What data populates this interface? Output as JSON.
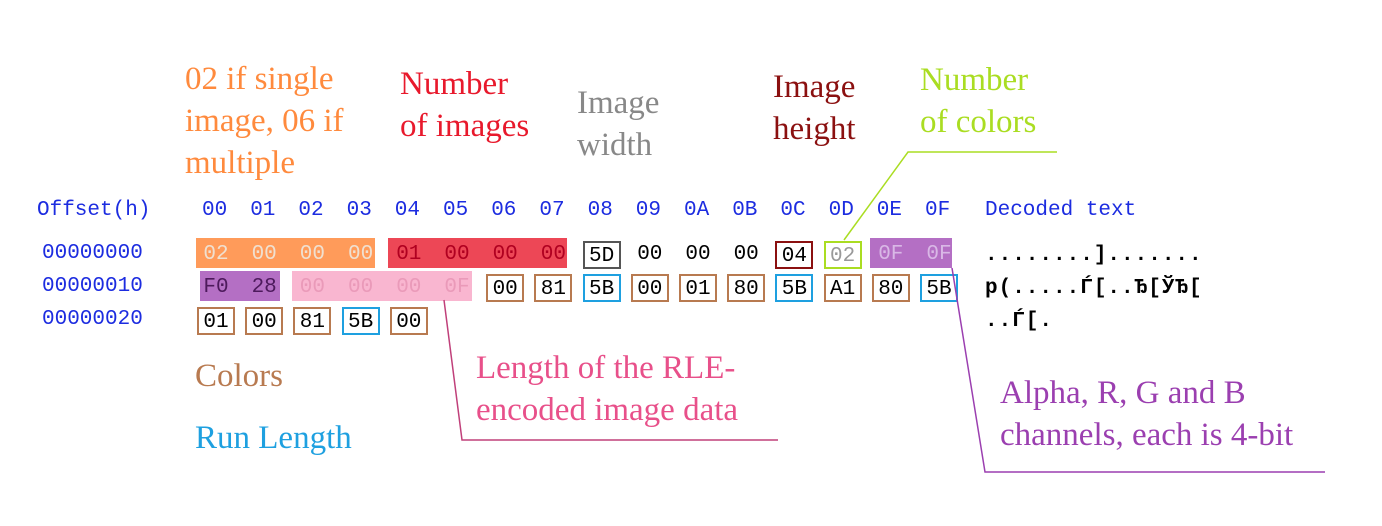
{
  "annotations": {
    "magic": "02 if single\nimage, 06 if\nmultiple",
    "num_images": "Number\nof images",
    "width": "Image\nwidth",
    "height": "Image\nheight",
    "num_colors": "Number\nof colors",
    "colors": "Colors",
    "run_length": "Run Length",
    "rle_length": "Length of the RLE-\nencoded image data",
    "argb": "Alpha, R, G and B\nchannels, each is 4-bit"
  },
  "hex": {
    "offset_label": "Offset(h)",
    "columns": [
      "00",
      "01",
      "02",
      "03",
      "04",
      "05",
      "06",
      "07",
      "08",
      "09",
      "0A",
      "0B",
      "0C",
      "0D",
      "0E",
      "0F"
    ],
    "decoded_label": "Decoded text",
    "rows": [
      {
        "offset": "00000000",
        "bytes": [
          "02",
          "00",
          "00",
          "00",
          "01",
          "00",
          "00",
          "00",
          "5D",
          "00",
          "00",
          "00",
          "04",
          "02",
          "0F",
          "0F"
        ],
        "decoded": "........].......  "
      },
      {
        "offset": "00000010",
        "bytes": [
          "F0",
          "28",
          "00",
          "00",
          "00",
          "0F",
          "00",
          "81",
          "5B",
          "00",
          "01",
          "80",
          "5B",
          "A1",
          "80",
          "5B"
        ],
        "decoded": "p(.....Ѓ[..Ђ[ЎЂ["
      },
      {
        "offset": "00000020",
        "bytes": [
          "01",
          "00",
          "81",
          "5B",
          "00"
        ],
        "decoded": "..Ѓ[."
      }
    ]
  },
  "colors": {
    "magic": "#ff8a3d",
    "num_images": "#e8192c",
    "width": "#888888",
    "height": "#8b1010",
    "num_colors": "#aadd22",
    "colors": "#b87a50",
    "run_length": "#1ea0e0",
    "rle_length": "#e8508a",
    "argb": "#9b3fb0"
  }
}
